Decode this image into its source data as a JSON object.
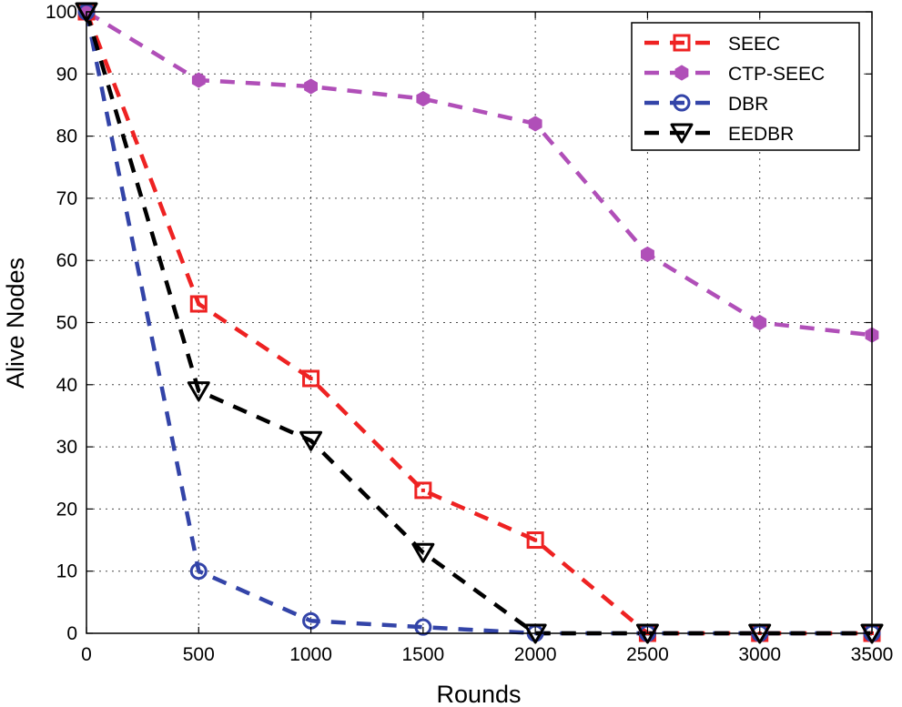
{
  "chart_data": {
    "type": "line",
    "title": "",
    "xlabel": "Rounds",
    "ylabel": "Alive Nodes",
    "xlim": [
      0,
      3500
    ],
    "ylim": [
      0,
      100
    ],
    "xticks": [
      0,
      500,
      1000,
      1500,
      2000,
      2500,
      3000,
      3500
    ],
    "yticks": [
      0,
      10,
      20,
      30,
      40,
      50,
      60,
      70,
      80,
      90,
      100
    ],
    "grid": true,
    "legend_position": "top-right",
    "x": [
      0,
      500,
      1000,
      1500,
      2000,
      2500,
      3000,
      3500
    ],
    "series": [
      {
        "name": "SEEC",
        "color": "#ee2222",
        "marker": "square-dot",
        "values": [
          100,
          53,
          41,
          23,
          15,
          0,
          0,
          0
        ]
      },
      {
        "name": "CTP-SEEC",
        "color": "#b04fb8",
        "marker": "filled-hexagon",
        "values": [
          100,
          89,
          88,
          86,
          82,
          61,
          50,
          48
        ]
      },
      {
        "name": "DBR",
        "color": "#3344a8",
        "marker": "circle",
        "values": [
          100,
          10,
          2,
          1,
          0,
          0,
          0,
          0
        ]
      },
      {
        "name": "EEDBR",
        "color": "#000000",
        "marker": "triangle-down",
        "values": [
          100,
          39,
          31,
          13,
          0,
          0,
          0,
          0
        ]
      }
    ]
  }
}
